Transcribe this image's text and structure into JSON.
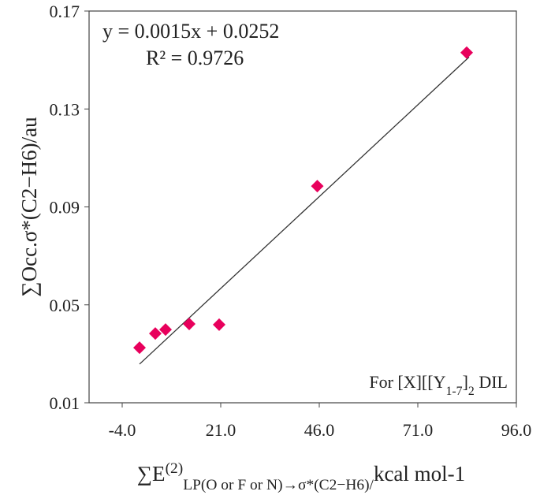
{
  "chart_data": {
    "type": "scatter",
    "x_label": [
      {
        "text": "∑E",
        "style": "normal"
      },
      {
        "text": "(2)",
        "style": "sup"
      },
      {
        "text": "LP(O or F or N)→σ*(C2−H6)/",
        "style": "sub"
      },
      {
        "text": "kcal mol-1",
        "style": "normal"
      }
    ],
    "y_label": "∑Occ.σ*(C2−H6)/au",
    "annotations": [
      "y = 0.0015x + 0.0252",
      "R² = 0.9726",
      [
        {
          "text": "For [X][[Y",
          "style": "normal"
        },
        {
          "text": "1-7",
          "style": "sub"
        },
        {
          "text": "]",
          "style": "normal"
        },
        {
          "text": "2",
          "style": "sub"
        },
        {
          "text": " DIL",
          "style": "normal"
        }
      ]
    ],
    "x": [
      0.4,
      4.4,
      7.0,
      13.0,
      20.6,
      45.5,
      83.4
    ],
    "values": [
      0.0325,
      0.0383,
      0.0399,
      0.0422,
      0.0419,
      0.0985,
      0.153
    ],
    "color": "#e8005c",
    "trendline": {
      "x": [
        0.4,
        84.0
      ],
      "values": [
        0.0258,
        0.1512
      ],
      "color": "#333333"
    },
    "xlim": [
      -12.4,
      96
    ],
    "xticks": [
      {
        "value": -4,
        "label": "-4.0"
      },
      {
        "value": 21,
        "label": "21.0"
      },
      {
        "value": 46,
        "label": "46.0"
      },
      {
        "value": 71,
        "label": "71.0"
      },
      {
        "value": 96,
        "label": "96.0"
      }
    ],
    "ylim": [
      0.01,
      0.17
    ],
    "yticks": [
      0.01,
      0.05,
      0.09,
      0.13,
      0.17
    ],
    "grid": false
  }
}
